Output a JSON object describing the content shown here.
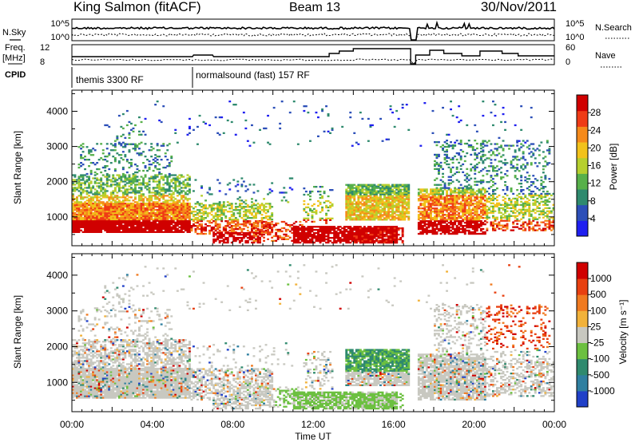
{
  "header": {
    "station": "King Salmon (fitACF)",
    "beam": "Beam 13",
    "date": "30/Nov/2011"
  },
  "top_panels": {
    "nsky_label": "N.Sky",
    "nsky_ticks": [
      "10^5",
      "10^0"
    ],
    "nsearch_label": "N.Search",
    "nsearch_ticks": [
      "10^5",
      "10^0"
    ],
    "freq_label": "Freq.",
    "freq_unit": "[MHz]",
    "freq_ticks": [
      "12",
      "8"
    ],
    "nave_label": "Nave",
    "nave_ticks": [
      "60",
      "0"
    ],
    "cpid_label": "CPID",
    "cpid_segments": [
      {
        "label": "themis 3300 RF",
        "start_hour": 0
      },
      {
        "label": "normalsound (fast) 157 RF",
        "start_hour": 6
      }
    ]
  },
  "chart_data": [
    {
      "type": "heatmap",
      "title": "Power",
      "ylabel": "Slant Range [km]",
      "xlabel": "Time UT",
      "xlim_hours": [
        0,
        24
      ],
      "x_ticks": [
        "00:00",
        "04:00",
        "08:00",
        "12:00",
        "16:00",
        "20:00",
        "00:00"
      ],
      "ylim": [
        180,
        4600
      ],
      "y_ticks": [
        1000,
        2000,
        3000,
        4000
      ],
      "colorbar": {
        "label": "Power [dB]",
        "ticks": [
          "4",
          "8",
          "12",
          "16",
          "20",
          "24",
          "28"
        ],
        "colors": [
          "#1f1ff0",
          "#2c4fb8",
          "#2f8a6e",
          "#57b04a",
          "#b6cf2e",
          "#f2c21b",
          "#f58a1b",
          "#ef3b16",
          "#d00000"
        ]
      }
    },
    {
      "type": "heatmap",
      "title": "Velocity",
      "ylabel": "Slant Range [km]",
      "xlabel": "Time UT",
      "xlim_hours": [
        0,
        24
      ],
      "x_ticks": [
        "00:00",
        "04:00",
        "08:00",
        "12:00",
        "16:00",
        "20:00",
        "00:00"
      ],
      "ylim": [
        180,
        4600
      ],
      "y_ticks": [
        1000,
        2000,
        3000,
        4000
      ],
      "colorbar": {
        "label": "Velocity [m s⁻¹]",
        "ticks": [
          "1000",
          "500",
          "100",
          "25",
          "-25",
          "-100",
          "-500",
          "-1000"
        ],
        "colors": [
          "#2040c8",
          "#2f7fa0",
          "#2f8a6e",
          "#6cc040",
          "#c8c8c0",
          "#f2b23a",
          "#f07a20",
          "#e84010",
          "#d00000"
        ]
      }
    }
  ]
}
